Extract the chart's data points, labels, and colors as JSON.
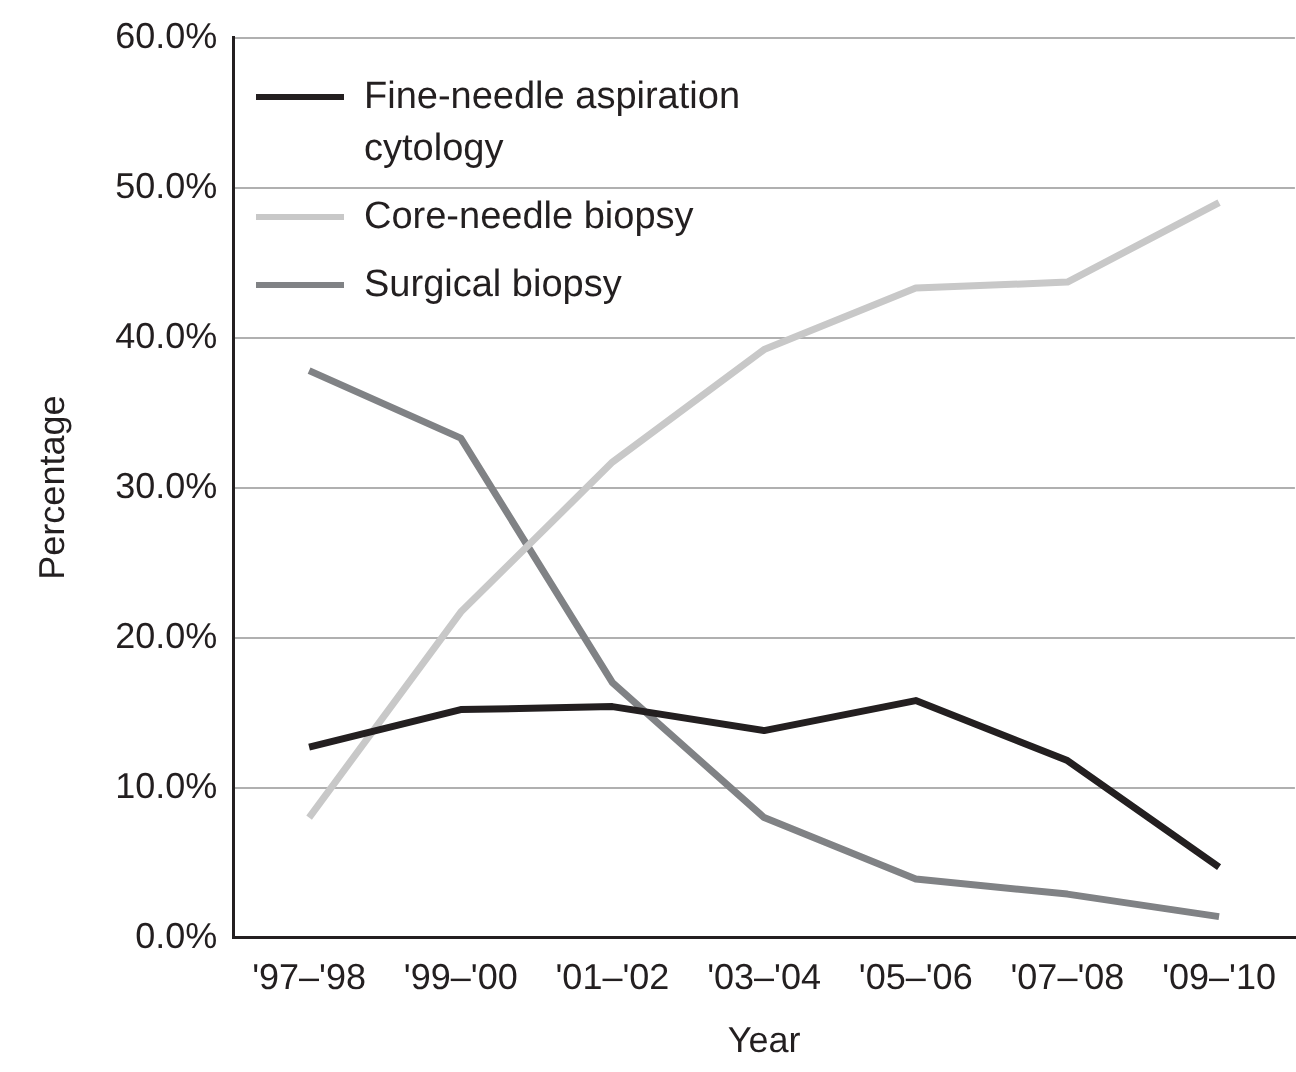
{
  "chart_data": {
    "type": "line",
    "xlabel": "Year",
    "ylabel": "Percentage",
    "categories": [
      "'97–'98",
      "'99–'00",
      "'01–'02",
      "'03–'04",
      "'05–'06",
      "'07–'08",
      "'09–'10"
    ],
    "series": [
      {
        "name": "Fine-needle aspiration cytology",
        "color": "#231f20",
        "values": [
          12.7,
          15.2,
          15.4,
          13.8,
          15.8,
          11.8,
          4.7
        ]
      },
      {
        "name": "Core-needle biopsy",
        "color": "#c8c8c8",
        "values": [
          8.0,
          21.7,
          31.7,
          39.2,
          43.3,
          43.7,
          49.0
        ]
      },
      {
        "name": "Surgical biopsy",
        "color": "#808285",
        "values": [
          37.8,
          33.3,
          17.0,
          8.0,
          3.9,
          2.9,
          1.4
        ]
      }
    ],
    "ylim": [
      0,
      60
    ],
    "yticks": [
      {
        "value": 0,
        "label": "0.0%"
      },
      {
        "value": 10,
        "label": "10.0%"
      },
      {
        "value": 20,
        "label": "20.0%"
      },
      {
        "value": 30,
        "label": "30.0%"
      },
      {
        "value": 40,
        "label": "40.0%"
      },
      {
        "value": 50,
        "label": "50.0%"
      },
      {
        "value": 60,
        "label": "60.0%"
      }
    ],
    "grid": "y",
    "legend": "top left",
    "marker": "none",
    "line_style": "solid"
  }
}
